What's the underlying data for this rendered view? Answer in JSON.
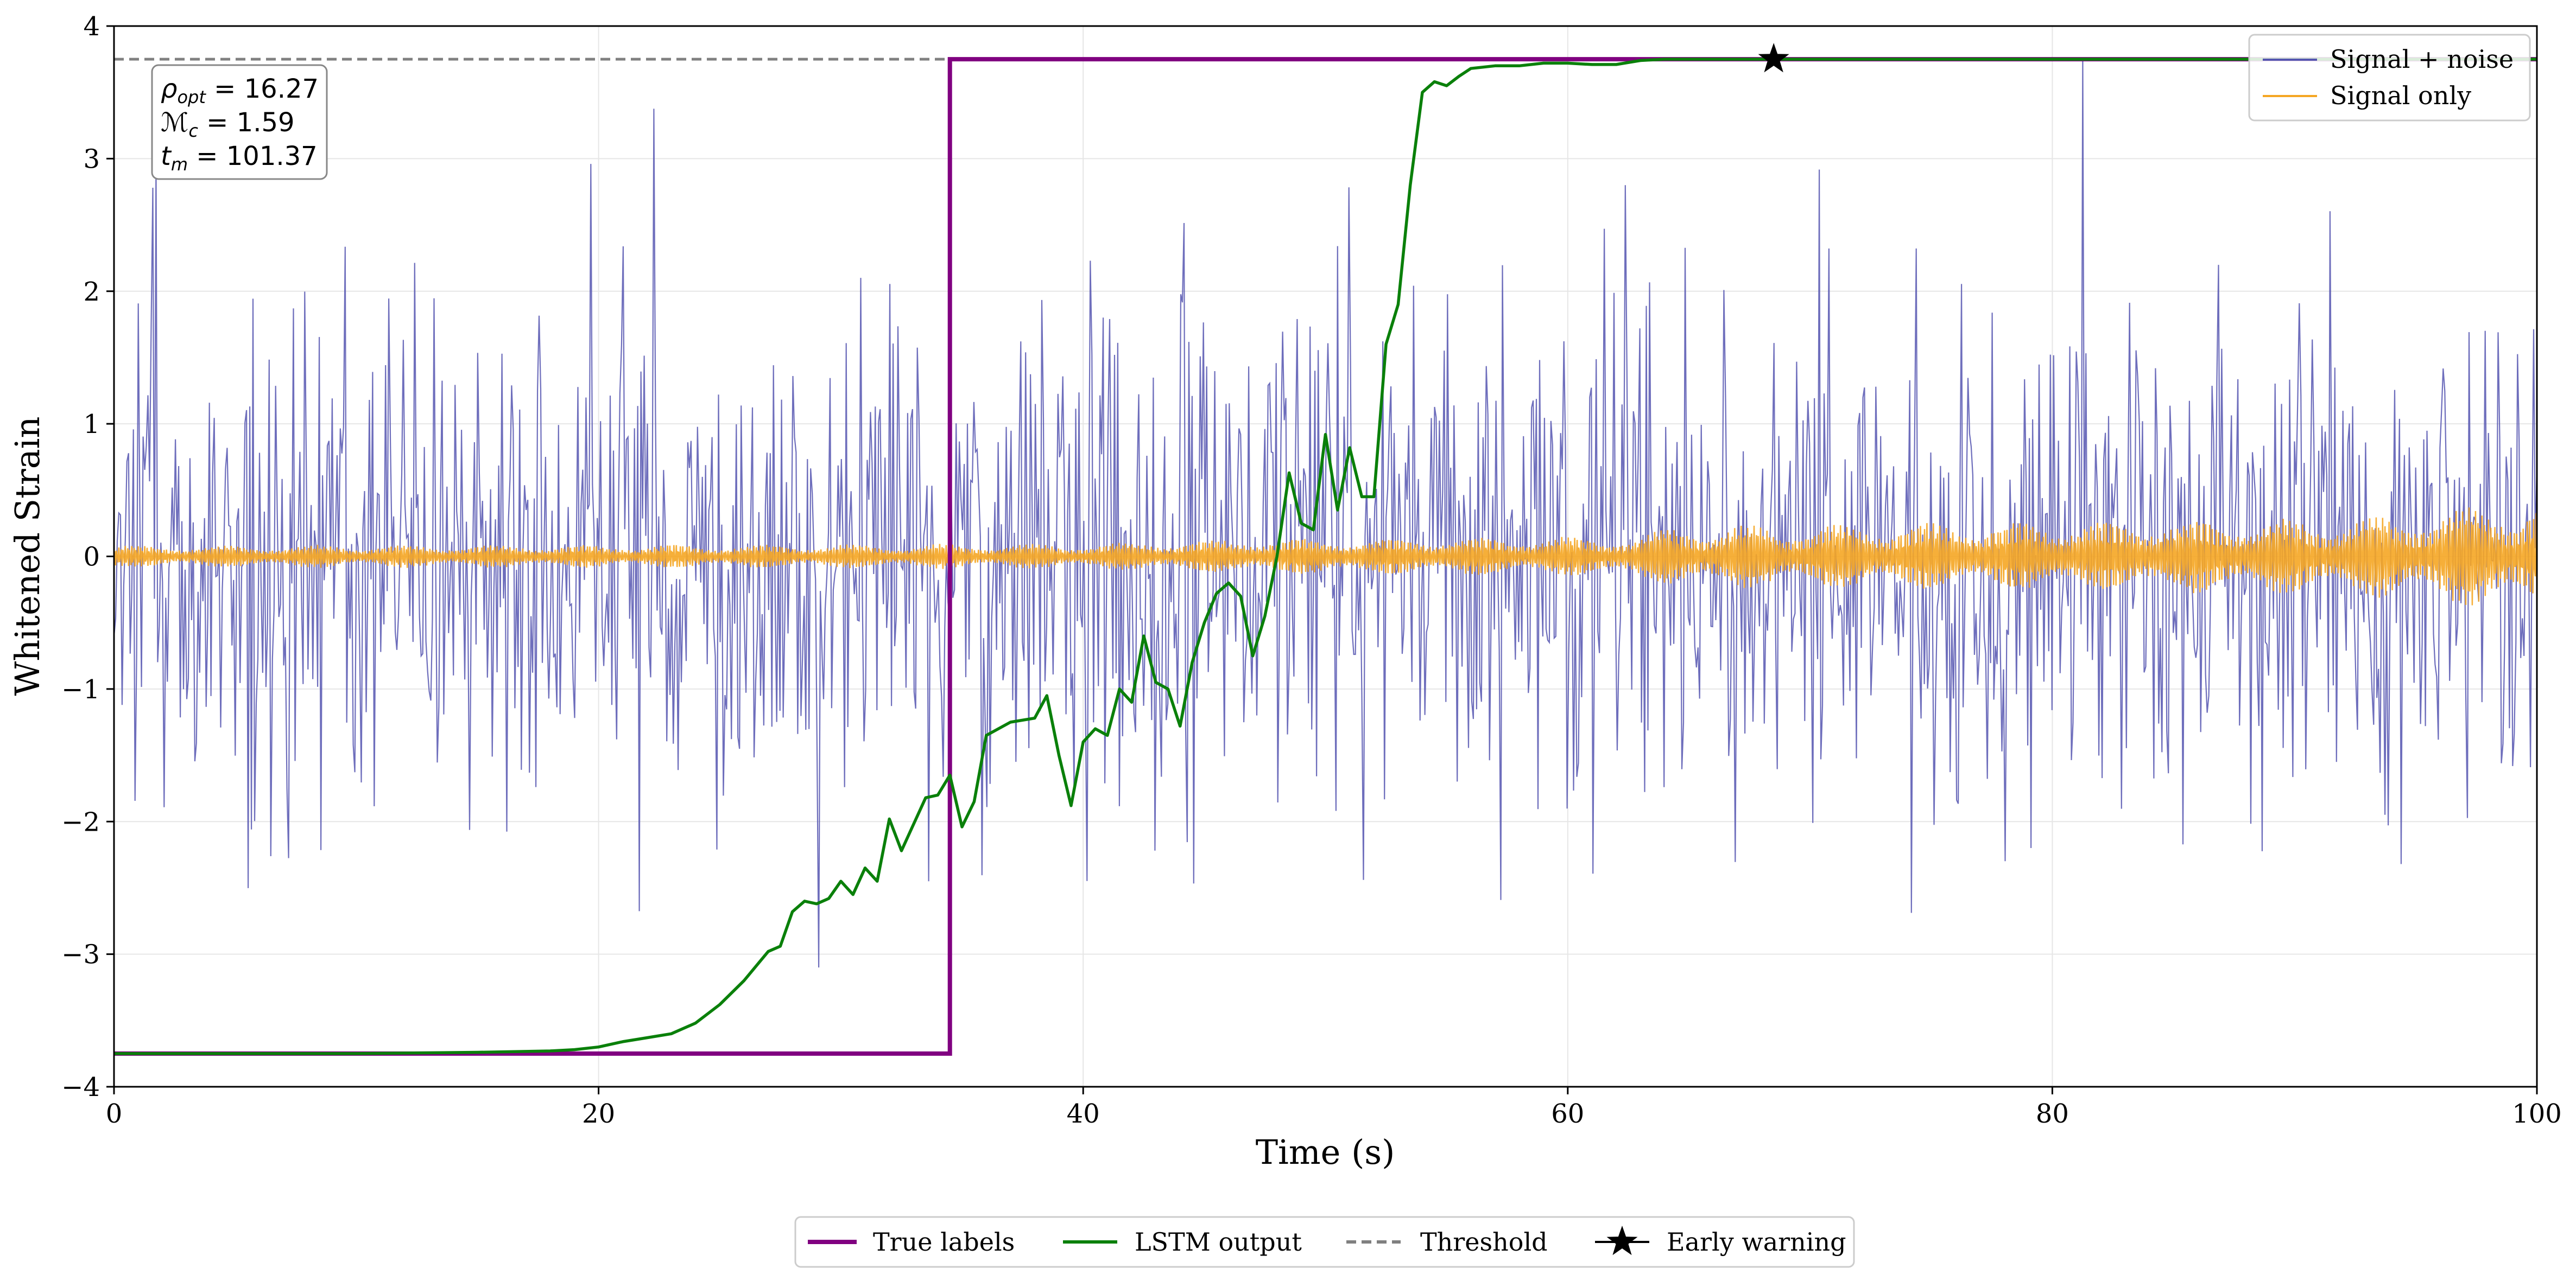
{
  "chart_data": {
    "type": "line",
    "title": "",
    "xlabel": "Time (s)",
    "ylabel": "Whitened Strain",
    "xlim": [
      0,
      100
    ],
    "ylim": [
      -4,
      4
    ],
    "xticks": [
      0,
      20,
      40,
      60,
      80,
      100
    ],
    "yticks": [
      -4,
      -3,
      -2,
      -1,
      0,
      1,
      2,
      3,
      4
    ],
    "xtick_labels": [
      "0",
      "20",
      "40",
      "60",
      "80",
      "100"
    ],
    "ytick_labels": [
      "−4",
      "−3",
      "−2",
      "−1",
      "0",
      "1",
      "2",
      "3",
      "4"
    ],
    "grid": true,
    "colors": {
      "noise": "#5555b0",
      "signal": "#f5a623",
      "true_labels": "#800080",
      "lstm": "#0a800a",
      "threshold": "#808080",
      "marker": "#000000"
    },
    "series": [
      {
        "name": "Signal + noise",
        "kind": "noisy",
        "sigma": 1.0,
        "n_points": 1500
      },
      {
        "name": "Signal only",
        "kind": "chirp",
        "envelope": [
          [
            0,
            0.08
          ],
          [
            40,
            0.09
          ],
          [
            47,
            0.13
          ],
          [
            63,
            0.15
          ],
          [
            64,
            0.22
          ],
          [
            92,
            0.28
          ],
          [
            100,
            0.4
          ]
        ]
      },
      {
        "name": "True labels",
        "x": [
          0,
          34.5,
          34.5,
          100
        ],
        "y": [
          -3.75,
          -3.75,
          3.75,
          3.75
        ]
      },
      {
        "name": "LSTM output",
        "x": [
          0,
          10,
          15,
          18,
          19,
          20,
          21,
          22,
          23,
          24,
          25,
          26,
          27,
          27.5,
          28,
          28.5,
          29,
          29.5,
          30,
          30.5,
          31,
          31.5,
          32,
          32.5,
          33,
          33.5,
          34,
          34.5,
          35,
          35.5,
          36,
          37,
          38,
          38.5,
          39,
          39.5,
          40,
          40.5,
          41,
          41.5,
          42,
          42.5,
          43,
          43.5,
          44,
          44.5,
          45,
          45.5,
          46,
          46.5,
          47,
          47.5,
          48,
          48.5,
          49,
          49.5,
          50,
          50.5,
          51,
          51.5,
          52,
          52.5,
          53,
          53.5,
          54,
          54.5,
          55,
          55.5,
          56,
          57,
          58,
          59,
          60,
          61,
          62,
          63,
          64,
          70,
          80,
          100
        ],
        "y": [
          -3.75,
          -3.75,
          -3.74,
          -3.73,
          -3.72,
          -3.7,
          -3.66,
          -3.63,
          -3.6,
          -3.52,
          -3.38,
          -3.2,
          -2.98,
          -2.94,
          -2.68,
          -2.6,
          -2.62,
          -2.58,
          -2.45,
          -2.55,
          -2.35,
          -2.45,
          -1.98,
          -2.22,
          -2.02,
          -1.82,
          -1.8,
          -1.65,
          -2.04,
          -1.85,
          -1.35,
          -1.25,
          -1.22,
          -1.05,
          -1.5,
          -1.88,
          -1.4,
          -1.3,
          -1.35,
          -1.0,
          -1.1,
          -0.6,
          -0.95,
          -1.0,
          -1.28,
          -0.8,
          -0.5,
          -0.28,
          -0.2,
          -0.3,
          -0.75,
          -0.45,
          0.0,
          0.63,
          0.25,
          0.2,
          0.92,
          0.35,
          0.82,
          0.45,
          0.45,
          1.6,
          1.9,
          2.8,
          3.5,
          3.58,
          3.55,
          3.62,
          3.68,
          3.7,
          3.7,
          3.72,
          3.72,
          3.71,
          3.71,
          3.74,
          3.75,
          3.75,
          3.75,
          3.75
        ]
      },
      {
        "name": "Threshold",
        "y": 3.75
      }
    ],
    "early_warning": {
      "name": "Early warning",
      "x": 68.5,
      "y": 3.75
    },
    "annotation": {
      "rho_opt": "16.27",
      "mchirp": "1.59",
      "t_m": "101.37"
    },
    "legend_upper": {
      "placement": "top-right",
      "entries": [
        "Signal + noise",
        "Signal only"
      ]
    },
    "legend_lower": {
      "placement": "bottom-center",
      "entries": [
        "True labels",
        "LSTM output",
        "Threshold",
        "Early warning"
      ]
    }
  }
}
